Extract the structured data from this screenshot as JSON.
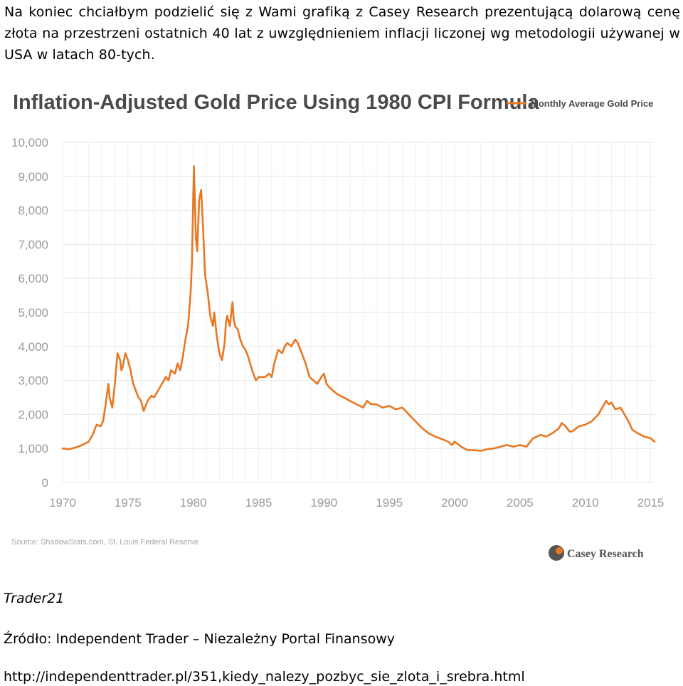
{
  "intro_text": "Na koniec chciałbym podzielić się z Wami grafiką z Casey Research prezentującą dolarową cenę złota na przestrzeni ostatnich 40 lat z uwzględnieniem inflacji liczonej wg metodologii używanej w USA w latach 80-tych.",
  "chart_data": {
    "type": "line",
    "title": "Inflation-Adjusted Gold Price Using 1980 CPI Formula",
    "legend": [
      "Monthly Average Gold Price"
    ],
    "legend_position": "top-right",
    "source": "Source: ShadowStats.com, St. Louis Federal Reserve",
    "logo_text": "Casey Research",
    "xlabel": "",
    "ylabel": "",
    "xlim": [
      1970,
      2015.3
    ],
    "ylim": [
      0,
      10000
    ],
    "x_ticks": [
      "1970",
      "1975",
      "1980",
      "1985",
      "1990",
      "1995",
      "2000",
      "2005",
      "2010",
      "2015"
    ],
    "y_ticks": [
      "0",
      "1,000",
      "2,000",
      "3,000",
      "4,000",
      "5,000",
      "6,000",
      "7,000",
      "8,000",
      "9,000",
      "10,000"
    ],
    "grid": true,
    "line_color": "#e87722",
    "series": [
      {
        "name": "Monthly Average Gold Price",
        "x": [
          1970.0,
          1970.5,
          1971.0,
          1971.5,
          1972.0,
          1972.3,
          1972.6,
          1972.9,
          1973.1,
          1973.3,
          1973.5,
          1973.6,
          1973.8,
          1974.0,
          1974.2,
          1974.4,
          1974.5,
          1974.6,
          1974.8,
          1974.9,
          1975.0,
          1975.2,
          1975.4,
          1975.6,
          1975.8,
          1976.0,
          1976.2,
          1976.5,
          1976.8,
          1977.0,
          1977.3,
          1977.6,
          1977.9,
          1978.1,
          1978.3,
          1978.6,
          1978.8,
          1979.0,
          1979.2,
          1979.4,
          1979.6,
          1979.8,
          1979.9,
          1980.0,
          1980.05,
          1980.2,
          1980.3,
          1980.45,
          1980.6,
          1980.75,
          1980.9,
          1981.1,
          1981.3,
          1981.5,
          1981.6,
          1981.8,
          1982.0,
          1982.2,
          1982.4,
          1982.5,
          1982.6,
          1982.8,
          1983.0,
          1983.1,
          1983.2,
          1983.4,
          1983.6,
          1983.8,
          1984.0,
          1984.2,
          1984.5,
          1984.8,
          1985.0,
          1985.2,
          1985.5,
          1985.8,
          1986.0,
          1986.2,
          1986.5,
          1986.8,
          1987.0,
          1987.2,
          1987.5,
          1987.8,
          1988.0,
          1988.3,
          1988.6,
          1988.9,
          1989.2,
          1989.5,
          1989.8,
          1990.0,
          1990.2,
          1990.4,
          1990.7,
          1991.0,
          1991.5,
          1992.0,
          1992.5,
          1993.0,
          1993.3,
          1993.6,
          1993.8,
          1994.0,
          1994.5,
          1995.0,
          1995.5,
          1996.0,
          1996.5,
          1997.0,
          1997.5,
          1998.0,
          1998.5,
          1999.0,
          1999.5,
          1999.8,
          2000.0,
          2000.5,
          2001.0,
          2001.5,
          2002.0,
          2002.5,
          2003.0,
          2003.5,
          2004.0,
          2004.5,
          2005.0,
          2005.5,
          2006.0,
          2006.3,
          2006.6,
          2007.0,
          2007.5,
          2008.0,
          2008.2,
          2008.5,
          2008.8,
          2009.0,
          2009.5,
          2010.0,
          2010.5,
          2011.0,
          2011.3,
          2011.6,
          2011.8,
          2012.0,
          2012.3,
          2012.7,
          2013.0,
          2013.3,
          2013.6,
          2014.0,
          2014.5,
          2015.0,
          2015.3
        ],
        "values": [
          1000,
          980,
          1030,
          1100,
          1200,
          1400,
          1700,
          1650,
          1800,
          2300,
          2900,
          2500,
          2200,
          2900,
          3800,
          3600,
          3300,
          3400,
          3800,
          3700,
          3600,
          3300,
          2900,
          2700,
          2500,
          2400,
          2100,
          2400,
          2550,
          2500,
          2700,
          2900,
          3100,
          3000,
          3300,
          3200,
          3500,
          3300,
          3700,
          4200,
          4600,
          5600,
          6500,
          8500,
          9300,
          7200,
          6800,
          8300,
          8600,
          7500,
          6100,
          5600,
          4900,
          4600,
          5000,
          4300,
          3800,
          3600,
          4100,
          4700,
          4900,
          4600,
          5300,
          4800,
          4600,
          4500,
          4200,
          4000,
          3900,
          3700,
          3300,
          3000,
          3100,
          3100,
          3100,
          3200,
          3100,
          3500,
          3900,
          3800,
          4000,
          4100,
          4000,
          4200,
          4100,
          3800,
          3500,
          3100,
          3000,
          2900,
          3100,
          3200,
          2900,
          2800,
          2700,
          2600,
          2500,
          2400,
          2300,
          2200,
          2400,
          2300,
          2300,
          2300,
          2200,
          2250,
          2150,
          2200,
          2000,
          1800,
          1600,
          1450,
          1350,
          1280,
          1200,
          1100,
          1200,
          1050,
          950,
          950,
          930,
          980,
          1000,
          1050,
          1100,
          1050,
          1100,
          1050,
          1300,
          1350,
          1400,
          1350,
          1450,
          1600,
          1750,
          1650,
          1500,
          1500,
          1650,
          1700,
          1800,
          2000,
          2200,
          2400,
          2300,
          2350,
          2150,
          2200,
          2000,
          1800,
          1550,
          1450,
          1350,
          1300,
          1200
        ]
      }
    ]
  },
  "author": "Trader21",
  "source_line": "Źródło: Independent Trader – Niezależny Portal Finansowy",
  "link_url": "http://independenttrader.pl/351,kiedy_nalezy_pozbyc_sie_zlota_i_srebra.html"
}
